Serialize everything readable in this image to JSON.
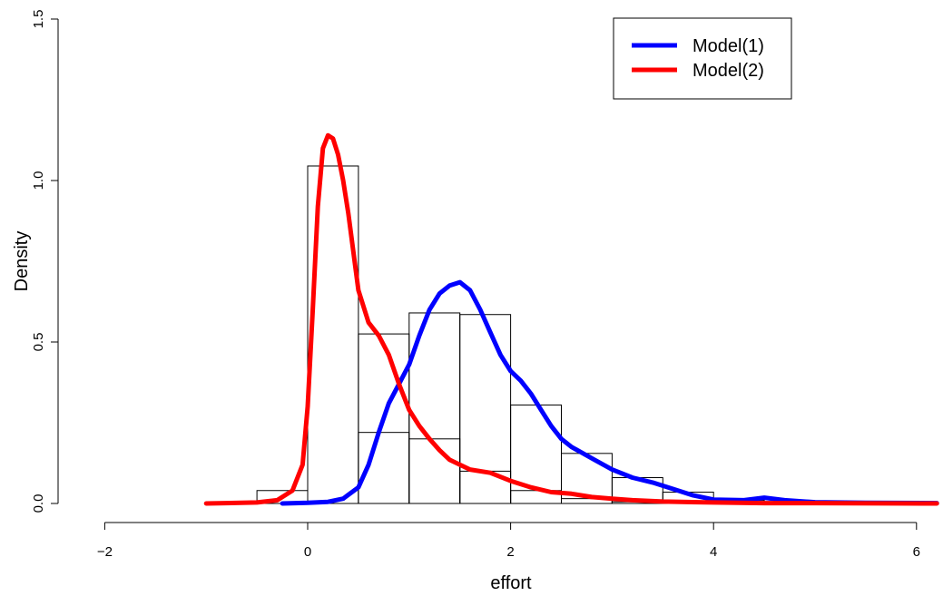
{
  "chart_data": {
    "type": "histogram_with_density_lines",
    "title": "",
    "xlabel": "effort",
    "ylabel": "Density",
    "xlim": [
      -2,
      6.2
    ],
    "ylim": [
      0,
      1.5
    ],
    "x_ticks": [
      -2,
      0,
      2,
      4,
      6
    ],
    "y_ticks": [
      0.0,
      0.5,
      1.0,
      1.5
    ],
    "x_tick_labels": [
      "−2",
      "0",
      "2",
      "4",
      "6"
    ],
    "y_tick_labels": [
      "0.0",
      "0.5",
      "1.0",
      "1.5"
    ],
    "grid": false,
    "legend_position": "top-right",
    "histograms": [
      {
        "bin_edges": [
          -0.5,
          0,
          0.5,
          1,
          1.5,
          2,
          2.5,
          3,
          3.5,
          4,
          4.5,
          5
        ],
        "values": [
          0.04,
          1.045,
          0.525,
          0.59,
          0.585,
          0.305,
          0.155,
          0.08,
          0.035,
          0.01,
          0.005
        ]
      },
      {
        "bin_edges": [
          0.5,
          1,
          1.5,
          2,
          2.5,
          3,
          3.5
        ],
        "values": [
          0.22,
          0.2,
          0.1,
          0.04,
          0.015,
          0.005
        ]
      }
    ],
    "series": [
      {
        "name": "Model(1)",
        "color": "#0000ff",
        "x": [
          -0.25,
          0,
          0.2,
          0.35,
          0.5,
          0.6,
          0.7,
          0.8,
          0.9,
          1.0,
          1.1,
          1.2,
          1.3,
          1.4,
          1.5,
          1.6,
          1.7,
          1.8,
          1.9,
          2.0,
          2.1,
          2.2,
          2.3,
          2.4,
          2.5,
          2.6,
          2.8,
          3.0,
          3.2,
          3.4,
          3.6,
          3.8,
          4.0,
          4.3,
          4.5,
          4.7,
          5.0,
          5.5,
          6.2
        ],
        "y": [
          0,
          0.002,
          0.005,
          0.015,
          0.05,
          0.12,
          0.22,
          0.31,
          0.37,
          0.43,
          0.52,
          0.6,
          0.65,
          0.675,
          0.685,
          0.66,
          0.6,
          0.53,
          0.46,
          0.41,
          0.38,
          0.34,
          0.29,
          0.24,
          0.2,
          0.175,
          0.14,
          0.105,
          0.08,
          0.065,
          0.045,
          0.025,
          0.012,
          0.01,
          0.018,
          0.01,
          0.004,
          0.002,
          0.001
        ]
      },
      {
        "name": "Model(2)",
        "color": "#ff0000",
        "x": [
          -1,
          -0.5,
          -0.3,
          -0.15,
          -0.05,
          0,
          0.05,
          0.1,
          0.15,
          0.2,
          0.25,
          0.3,
          0.35,
          0.4,
          0.45,
          0.5,
          0.6,
          0.7,
          0.8,
          0.9,
          1.0,
          1.1,
          1.2,
          1.3,
          1.4,
          1.5,
          1.6,
          1.8,
          2.0,
          2.2,
          2.4,
          2.6,
          2.8,
          3.0,
          3.2,
          3.5,
          4.0,
          4.5,
          5.0,
          6.2
        ],
        "y": [
          0,
          0.003,
          0.01,
          0.04,
          0.12,
          0.3,
          0.6,
          0.92,
          1.1,
          1.14,
          1.13,
          1.08,
          1.0,
          0.9,
          0.78,
          0.66,
          0.56,
          0.52,
          0.46,
          0.37,
          0.29,
          0.24,
          0.2,
          0.165,
          0.135,
          0.12,
          0.105,
          0.095,
          0.07,
          0.05,
          0.035,
          0.03,
          0.02,
          0.015,
          0.01,
          0.006,
          0.003,
          0.001,
          0.001,
          0
        ]
      }
    ]
  }
}
